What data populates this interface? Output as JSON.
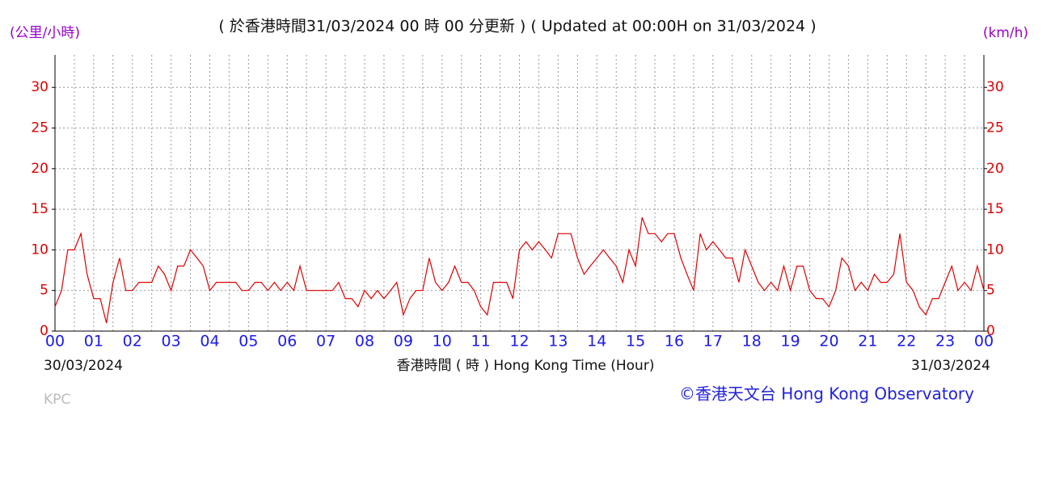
{
  "chart_data": {
    "type": "line",
    "title": "( 於香港時間31/03/2024 00 時 00 分更新 ) ( Updated at 00:00H on 31/03/2024 )",
    "y_label_left": "(公里/小時)",
    "y_label_right": "(km/h)",
    "x_label": "香港時間 ( 時 ) Hong Kong Time (Hour)",
    "start_date": "30/03/2024",
    "end_date": "31/03/2024",
    "station": "KPC",
    "credit": "©香港天文台 Hong Kong Observatory",
    "grid": true,
    "xlim": [
      0,
      24
    ],
    "ylim": [
      0,
      34
    ],
    "yticks": [
      0,
      5,
      10,
      15,
      20,
      25,
      30
    ],
    "xticks": [
      {
        "value": 0,
        "label": "00"
      },
      {
        "value": 1,
        "label": "01"
      },
      {
        "value": 2,
        "label": "02"
      },
      {
        "value": 3,
        "label": "03"
      },
      {
        "value": 4,
        "label": "04"
      },
      {
        "value": 5,
        "label": "05"
      },
      {
        "value": 6,
        "label": "06"
      },
      {
        "value": 7,
        "label": "07"
      },
      {
        "value": 8,
        "label": "08"
      },
      {
        "value": 9,
        "label": "09"
      },
      {
        "value": 10,
        "label": "10"
      },
      {
        "value": 11,
        "label": "11"
      },
      {
        "value": 12,
        "label": "12"
      },
      {
        "value": 13,
        "label": "13"
      },
      {
        "value": 14,
        "label": "14"
      },
      {
        "value": 15,
        "label": "15"
      },
      {
        "value": 16,
        "label": "16"
      },
      {
        "value": 17,
        "label": "17"
      },
      {
        "value": 18,
        "label": "18"
      },
      {
        "value": 19,
        "label": "19"
      },
      {
        "value": 20,
        "label": "20"
      },
      {
        "value": 21,
        "label": "21"
      },
      {
        "value": 22,
        "label": "22"
      },
      {
        "value": 23,
        "label": "23"
      },
      {
        "value": 24,
        "label": "00"
      }
    ],
    "x": [
      0,
      0.17,
      0.33,
      0.5,
      0.67,
      0.83,
      1,
      1.17,
      1.33,
      1.5,
      1.67,
      1.83,
      2,
      2.17,
      2.33,
      2.5,
      2.67,
      2.83,
      3,
      3.17,
      3.33,
      3.5,
      3.67,
      3.83,
      4,
      4.17,
      4.33,
      4.5,
      4.67,
      4.83,
      5,
      5.17,
      5.33,
      5.5,
      5.67,
      5.83,
      6,
      6.17,
      6.33,
      6.5,
      6.67,
      6.83,
      7,
      7.17,
      7.33,
      7.5,
      7.67,
      7.83,
      8,
      8.17,
      8.33,
      8.5,
      8.67,
      8.83,
      9,
      9.17,
      9.33,
      9.5,
      9.67,
      9.83,
      10,
      10.17,
      10.33,
      10.5,
      10.67,
      10.83,
      11,
      11.17,
      11.33,
      11.5,
      11.67,
      11.83,
      12,
      12.17,
      12.33,
      12.5,
      12.67,
      12.83,
      13,
      13.17,
      13.33,
      13.5,
      13.67,
      13.83,
      14,
      14.17,
      14.33,
      14.5,
      14.67,
      14.83,
      15,
      15.17,
      15.33,
      15.5,
      15.67,
      15.83,
      16,
      16.17,
      16.33,
      16.5,
      16.67,
      16.83,
      17,
      17.17,
      17.33,
      17.5,
      17.67,
      17.83,
      18,
      18.17,
      18.33,
      18.5,
      18.67,
      18.83,
      19,
      19.17,
      19.33,
      19.5,
      19.67,
      19.83,
      20,
      20.17,
      20.33,
      20.5,
      20.67,
      20.83,
      21,
      21.17,
      21.33,
      21.5,
      21.67,
      21.83,
      22,
      22.17,
      22.33,
      22.5,
      22.67,
      22.83,
      23,
      23.17,
      23.33,
      23.5,
      23.67,
      23.83,
      24
    ],
    "series": [
      {
        "color": "#e00000",
        "values": [
          3,
          5,
          10,
          10,
          12,
          7,
          4,
          4,
          1,
          6,
          9,
          5,
          5,
          6,
          6,
          6,
          8,
          7,
          5,
          8,
          8,
          10,
          9,
          8,
          5,
          6,
          6,
          6,
          6,
          5,
          5,
          6,
          6,
          5,
          6,
          5,
          6,
          5,
          8,
          5,
          5,
          5,
          5,
          5,
          6,
          4,
          4,
          3,
          5,
          4,
          5,
          4,
          5,
          6,
          2,
          4,
          5,
          5,
          9,
          6,
          5,
          6,
          8,
          6,
          6,
          5,
          3,
          2,
          6,
          6,
          6,
          4,
          10,
          11,
          10,
          11,
          10,
          9,
          12,
          12,
          12,
          9,
          7,
          8,
          9,
          10,
          9,
          8,
          6,
          10,
          8,
          14,
          12,
          12,
          11,
          12,
          12,
          9,
          7,
          5,
          12,
          10,
          11,
          10,
          9,
          9,
          6,
          10,
          8,
          6,
          5,
          6,
          5,
          8,
          5,
          8,
          8,
          5,
          4,
          4,
          3,
          5,
          9,
          8,
          5,
          6,
          5,
          7,
          6,
          6,
          7,
          12,
          6,
          5,
          3,
          2,
          4,
          4,
          6,
          8,
          5,
          6,
          5,
          8,
          5
        ]
      }
    ]
  }
}
